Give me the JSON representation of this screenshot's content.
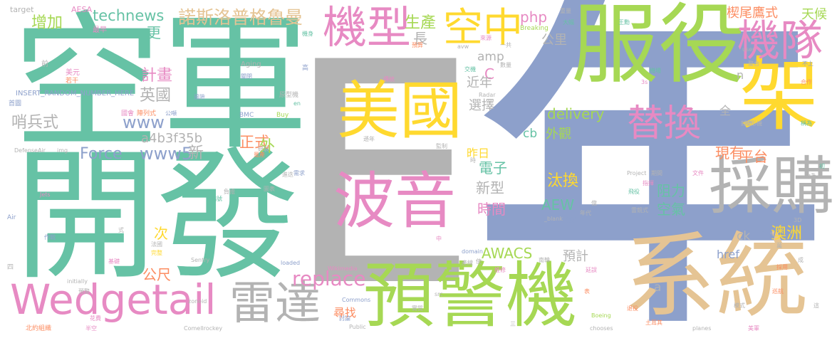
{
  "cloud": {
    "palette": {
      "green": "#66c2a5",
      "orange": "#fc8d62",
      "blue": "#8da0cb",
      "pink": "#e78ac3",
      "lime": "#a6d854",
      "yellow": "#ffd92f",
      "tan": "#e5c494",
      "gray": "#b3b3b3"
    },
    "words": [
      {
        "text": "年",
        "color": "blue"
      },
      {
        "text": "E",
        "color": "gray"
      },
      {
        "text": "空軍",
        "color": "green"
      },
      {
        "text": "開發",
        "color": "green"
      },
      {
        "text": "服役",
        "color": "lime"
      },
      {
        "text": "系統",
        "color": "tan"
      },
      {
        "text": "預警機",
        "color": "lime"
      },
      {
        "text": "架",
        "color": "yellow"
      },
      {
        "text": "美國",
        "color": "yellow"
      },
      {
        "text": "波音",
        "color": "pink"
      },
      {
        "text": "採購",
        "color": "gray"
      },
      {
        "text": "機型",
        "color": "pink"
      },
      {
        "text": "空中",
        "color": "yellow"
      },
      {
        "text": "機隊",
        "color": "pink"
      },
      {
        "text": "Wedgetail",
        "color": "pink"
      },
      {
        "text": "雷達",
        "color": "gray"
      },
      {
        "text": "替換",
        "color": "pink"
      },
      {
        "text": "諾斯洛普格魯曼",
        "color": "tan"
      },
      {
        "text": "technews",
        "color": "green"
      },
      {
        "text": "replace",
        "color": "pink"
      },
      {
        "text": "哨兵式",
        "color": "gray"
      },
      {
        "text": "英國",
        "color": "gray"
      },
      {
        "text": "計畫",
        "color": "pink"
      },
      {
        "text": "www",
        "color": "blue"
      },
      {
        "text": "Force",
        "color": "blue"
      },
      {
        "text": "www5",
        "color": "blue"
      },
      {
        "text": "a4b3f35b",
        "color": "gray"
      },
      {
        "text": "正式",
        "color": "orange"
      },
      {
        "text": "新",
        "color": "gray"
      },
      {
        "text": "外",
        "color": "lime"
      },
      {
        "text": "增加",
        "color": "lime"
      },
      {
        "text": "更",
        "color": "green"
      },
      {
        "text": "生產",
        "color": "lime"
      },
      {
        "text": "長",
        "color": "gray"
      },
      {
        "text": "php",
        "color": "pink"
      },
      {
        "text": "公里",
        "color": "gray"
      },
      {
        "text": "楔尾鷹式",
        "color": "orange"
      },
      {
        "text": "天候",
        "color": "lime"
      },
      {
        "text": "amp",
        "color": "gray"
      },
      {
        "text": "C",
        "color": "pink"
      },
      {
        "text": "近年",
        "color": "gray"
      },
      {
        "text": "選擇",
        "color": "gray"
      },
      {
        "text": "delivery",
        "color": "lime"
      },
      {
        "text": "外觀",
        "color": "lime"
      },
      {
        "text": "cb",
        "color": "green"
      },
      {
        "text": "昨日",
        "color": "yellow"
      },
      {
        "text": "電子",
        "color": "green"
      },
      {
        "text": "新型",
        "color": "gray"
      },
      {
        "text": "時間",
        "color": "pink"
      },
      {
        "text": "汰換",
        "color": "yellow"
      },
      {
        "text": "AEW",
        "color": "green"
      },
      {
        "text": "阻力",
        "color": "green"
      },
      {
        "text": "空氣",
        "color": "green"
      },
      {
        "text": "現有",
        "color": "orange"
      },
      {
        "text": "平台",
        "color": "orange"
      },
      {
        "text": "澳洲",
        "color": "yellow"
      },
      {
        "text": "tw",
        "color": "blue"
      },
      {
        "text": "ck",
        "color": "gray"
      },
      {
        "text": "AWACS",
        "color": "lime"
      },
      {
        "text": "預計",
        "color": "gray"
      },
      {
        "text": "href",
        "color": "blue"
      },
      {
        "text": "公尺",
        "color": "orange"
      },
      {
        "text": "次",
        "color": "yellow"
      },
      {
        "text": "尋找",
        "color": "orange"
      },
      {
        "text": "a",
        "color": "gray"
      },
      {
        "text": "n",
        "color": "gray"
      },
      {
        "text": "全",
        "color": "gray"
      },
      {
        "text": "target",
        "color": "gray"
      },
      {
        "text": "AESA",
        "color": "pink"
      },
      {
        "text": "最早",
        "color": "pink"
      },
      {
        "text": "前",
        "color": "gray"
      },
      {
        "text": "美元",
        "color": "pink"
      },
      {
        "text": "若干",
        "color": "orange"
      },
      {
        "text": "INSERT_RANDOM_NUMBER_HERE",
        "color": "blue"
      },
      {
        "text": "首圖",
        "color": "blue"
      },
      {
        "text": "國會",
        "color": "pink"
      },
      {
        "text": "陣列式",
        "color": "orange"
      },
      {
        "text": "公噸",
        "color": "blue"
      },
      {
        "text": "風險",
        "color": "blue"
      },
      {
        "text": "原型機",
        "color": "gray"
      },
      {
        "text": "Aging",
        "color": "gray"
      },
      {
        "text": "機身",
        "color": "green"
      },
      {
        "text": "關閉",
        "color": "blue"
      },
      {
        "text": "高",
        "color": "blue"
      },
      {
        "text": "en",
        "color": "green"
      },
      {
        "text": "BMC",
        "color": "blue"
      },
      {
        "text": "Buy",
        "color": "lime"
      },
      {
        "text": "傳統",
        "color": "pink"
      },
      {
        "text": "交機",
        "color": "green"
      },
      {
        "text": "Radar",
        "color": "gray"
      },
      {
        "text": "avw",
        "color": "gray"
      },
      {
        "text": "數量",
        "color": "gray"
      },
      {
        "text": "一共",
        "color": "gray"
      },
      {
        "text": "預算",
        "color": "orange"
      },
      {
        "text": "Breaking",
        "color": "lime"
      },
      {
        "text": "來源",
        "color": "pink"
      },
      {
        "text": "重量",
        "color": "gray"
      },
      {
        "text": "大幅",
        "color": "green"
      },
      {
        "text": "3s",
        "color": "pink"
      },
      {
        "text": "王勳",
        "color": "green"
      },
      {
        "text": "整合",
        "color": "gray"
      },
      {
        "text": "不上",
        "color": "blue"
      },
      {
        "text": "合作",
        "color": "orange"
      },
      {
        "text": "user",
        "color": "gray"
      },
      {
        "text": "稱為",
        "color": "green"
      },
      {
        "text": "機場",
        "color": "green"
      },
      {
        "text": "錢德",
        "color": "gray"
      },
      {
        "text": "楔形機",
        "color": "gray"
      },
      {
        "text": "DefenseAir",
        "color": "gray"
      },
      {
        "text": "img",
        "color": "gray"
      },
      {
        "text": "遜年",
        "color": "gray"
      },
      {
        "text": "量產",
        "color": "orange"
      },
      {
        "text": "監制",
        "color": "gray"
      },
      {
        "text": "中",
        "color": "pink"
      },
      {
        "text": "成",
        "color": "gray"
      },
      {
        "text": "Jets",
        "color": "pink"
      },
      {
        "text": "需求",
        "color": "blue"
      },
      {
        "text": "進迭",
        "color": "gray"
      },
      {
        "text": "負擔",
        "color": "gray"
      },
      {
        "text": "編號",
        "color": "green"
      },
      {
        "text": "Air",
        "color": "blue"
      },
      {
        "text": "作戰",
        "color": "blue"
      },
      {
        "text": "式",
        "color": "gray"
      },
      {
        "text": "初",
        "color": "green"
      },
      {
        "text": "改為",
        "color": "gray"
      },
      {
        "text": "3D",
        "color": "gray"
      },
      {
        "text": "Project",
        "color": "gray"
      },
      {
        "text": "期間",
        "color": "gray"
      },
      {
        "text": "文件",
        "color": "pink"
      },
      {
        "text": "指揮",
        "color": "pink"
      },
      {
        "text": "飛役",
        "color": "green"
      },
      {
        "text": "雷競式",
        "color": "gray"
      },
      {
        "text": "年代",
        "color": "gray"
      },
      {
        "text": "加裝",
        "color": "blue"
      },
      {
        "text": "_blank",
        "color": "gray"
      },
      {
        "text": "法國",
        "color": "gray"
      },
      {
        "text": "完整",
        "color": "yellow"
      },
      {
        "text": "舊型",
        "color": "green"
      },
      {
        "text": "Sentry",
        "color": "gray"
      },
      {
        "text": "domain",
        "color": "blue"
      },
      {
        "text": "基礎",
        "color": "pink"
      },
      {
        "text": "loaded",
        "color": "blue"
      },
      {
        "text": "Wikimedia",
        "color": "pink"
      },
      {
        "text": "產線",
        "color": "gray"
      },
      {
        "text": "使",
        "color": "gray"
      },
      {
        "text": "南韓",
        "color": "gray"
      },
      {
        "text": "推修",
        "color": "pink"
      },
      {
        "text": "延誤",
        "color": "pink"
      },
      {
        "text": "採用",
        "color": "orange"
      },
      {
        "text": "四",
        "color": "gray"
      },
      {
        "text": "initially",
        "color": "gray"
      },
      {
        "text": "預警",
        "color": "gray"
      },
      {
        "text": "zoneid",
        "color": "gray"
      },
      {
        "text": "Commons",
        "color": "blue"
      },
      {
        "text": "src",
        "color": "gray"
      },
      {
        "text": "表",
        "color": "orange"
      },
      {
        "text": "退役",
        "color": "orange"
      },
      {
        "text": "模式",
        "color": "gray"
      },
      {
        "text": "實質",
        "color": "gray"
      },
      {
        "text": "Boeing",
        "color": "lime"
      },
      {
        "text": "這",
        "color": "gray"
      },
      {
        "text": "北約組織",
        "color": "orange"
      },
      {
        "text": "半空",
        "color": "pink"
      },
      {
        "text": "Comellrockey",
        "color": "gray"
      },
      {
        "text": "Public",
        "color": "gray"
      },
      {
        "text": "三",
        "color": "gray"
      },
      {
        "text": "chooses",
        "color": "gray"
      },
      {
        "text": "土耳其",
        "color": "orange"
      },
      {
        "text": "planes",
        "color": "gray"
      },
      {
        "text": "美軍",
        "color": "pink"
      },
      {
        "text": "巡航",
        "color": "orange"
      },
      {
        "text": "萬",
        "color": "gray"
      },
      {
        "text": "億",
        "color": "gray"
      },
      {
        "text": "花費",
        "color": "pink"
      },
      {
        "text": "研製",
        "color": "gray"
      },
      {
        "text": "時",
        "color": "gray"
      },
      {
        "text": "討論",
        "color": "blue"
      },
      {
        "text": "圖表",
        "color": "gray"
      }
    ]
  }
}
